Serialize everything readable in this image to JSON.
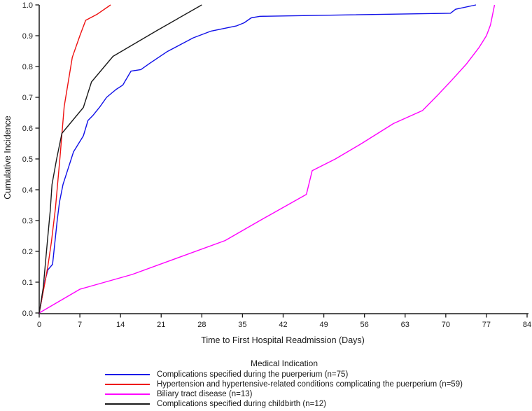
{
  "figure": {
    "background": "#ffffff",
    "axis_color": "#1a1a1a"
  },
  "chart_data": {
    "type": "line",
    "title": "",
    "xlabel": "Time to First Hospital Readmission (Days)",
    "ylabel": "Cumulative Incidence",
    "xlim": [
      0,
      84
    ],
    "ylim": [
      0.0,
      1.0
    ],
    "x_ticks": [
      0,
      7,
      14,
      21,
      28,
      35,
      42,
      49,
      56,
      63,
      70,
      77,
      84
    ],
    "y_ticks": [
      "0.0",
      "0.1",
      "0.2",
      "0.3",
      "0.4",
      "0.5",
      "0.6",
      "0.7",
      "0.8",
      "0.9",
      "1.0"
    ],
    "grid": false,
    "frame": "left-bottom-only",
    "legend": {
      "title": "Medical Indication",
      "position": "bottom-left-aligned"
    },
    "series": [
      {
        "name": "Complications specified during the puerperium (n=75)",
        "color": "#0f0fe8",
        "points": [
          [
            0,
            0
          ],
          [
            0.5,
            0.05
          ],
          [
            1,
            0.105
          ],
          [
            1.5,
            0.14
          ],
          [
            2.3,
            0.158
          ],
          [
            3.1,
            0.3
          ],
          [
            3.5,
            0.36
          ],
          [
            4.1,
            0.417
          ],
          [
            5,
            0.47
          ],
          [
            5.9,
            0.523
          ],
          [
            7.6,
            0.575
          ],
          [
            8.4,
            0.625
          ],
          [
            9.2,
            0.64
          ],
          [
            10.4,
            0.668
          ],
          [
            11.6,
            0.7
          ],
          [
            13.2,
            0.725
          ],
          [
            14.4,
            0.74
          ],
          [
            15.8,
            0.785
          ],
          [
            17.5,
            0.79
          ],
          [
            19,
            0.81
          ],
          [
            22,
            0.848
          ],
          [
            24.7,
            0.875
          ],
          [
            26.5,
            0.893
          ],
          [
            29.6,
            0.915
          ],
          [
            34,
            0.932
          ],
          [
            35.3,
            0.942
          ],
          [
            36.5,
            0.958
          ],
          [
            38,
            0.963
          ],
          [
            70.8,
            0.973
          ],
          [
            71.7,
            0.986
          ],
          [
            75.2,
            1.0
          ]
        ]
      },
      {
        "name": "Hypertension and hypertensive-related conditions complicating the puerperium (n=59)",
        "color": "#ee1111",
        "points": [
          [
            0,
            0
          ],
          [
            0.5,
            0.05
          ],
          [
            1,
            0.1
          ],
          [
            1.5,
            0.152
          ],
          [
            2.1,
            0.23
          ],
          [
            2.8,
            0.34
          ],
          [
            3.6,
            0.51
          ],
          [
            4.3,
            0.67
          ],
          [
            5.7,
            0.83
          ],
          [
            7,
            0.9
          ],
          [
            8,
            0.95
          ],
          [
            10,
            0.97
          ],
          [
            12.3,
            1.0
          ]
        ]
      },
      {
        "name": "Biliary tract disease (n=13)",
        "color": "#ff00ff",
        "points": [
          [
            0,
            0
          ],
          [
            7,
            0.077
          ],
          [
            16,
            0.125
          ],
          [
            24,
            0.18
          ],
          [
            32,
            0.235
          ],
          [
            38,
            0.3
          ],
          [
            46,
            0.385
          ],
          [
            47,
            0.462
          ],
          [
            51,
            0.5
          ],
          [
            55.5,
            0.55
          ],
          [
            61,
            0.615
          ],
          [
            66,
            0.657
          ],
          [
            68.5,
            0.705
          ],
          [
            71,
            0.755
          ],
          [
            73.5,
            0.807
          ],
          [
            75.7,
            0.861
          ],
          [
            77,
            0.9
          ],
          [
            77.7,
            0.935
          ],
          [
            78.4,
            1.0
          ]
        ]
      },
      {
        "name": "Complications specified during childbirth (n=12)",
        "color": "#1a1a1a",
        "points": [
          [
            0,
            0
          ],
          [
            0.7,
            0.083
          ],
          [
            1.1,
            0.167
          ],
          [
            1.5,
            0.25
          ],
          [
            1.9,
            0.333
          ],
          [
            2.2,
            0.417
          ],
          [
            3,
            0.5
          ],
          [
            3.9,
            0.583
          ],
          [
            7.6,
            0.667
          ],
          [
            9,
            0.75
          ],
          [
            12.7,
            0.833
          ],
          [
            20.3,
            0.917
          ],
          [
            28,
            1.0
          ]
        ]
      }
    ]
  }
}
